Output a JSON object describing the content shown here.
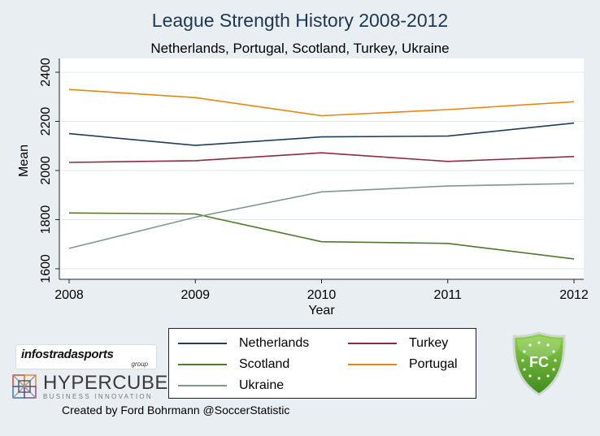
{
  "chart_data": {
    "type": "line",
    "title": "League Strength History 2008-2012",
    "subtitle": "Netherlands, Portugal, Scotland, Turkey, Ukraine",
    "xlabel": "Year",
    "ylabel": "Mean",
    "x": [
      2008,
      2009,
      2010,
      2011,
      2012
    ],
    "x_ticks": [
      "2008",
      "2009",
      "2010",
      "2011",
      "2012"
    ],
    "y_ticks": [
      "1600",
      "1800",
      "2000",
      "2200",
      "2400"
    ],
    "ylim": [
      1600,
      2400
    ],
    "grid": true,
    "legend_position": "bottom",
    "series": [
      {
        "name": "Netherlands",
        "color": "#1f3e5a",
        "values": [
          2150,
          2102,
          2137,
          2140,
          2193
        ]
      },
      {
        "name": "Turkey",
        "color": "#8c2c3c",
        "values": [
          2033,
          2040,
          2072,
          2037,
          2057
        ]
      },
      {
        "name": "Scotland",
        "color": "#4e7a2a",
        "values": [
          1827,
          1823,
          1710,
          1703,
          1640
        ]
      },
      {
        "name": "Portugal",
        "color": "#e8870c",
        "values": [
          2330,
          2297,
          2223,
          2248,
          2280
        ]
      },
      {
        "name": "Ukraine",
        "color": "#7f978f",
        "values": [
          1683,
          1810,
          1913,
          1937,
          1947
        ]
      }
    ]
  },
  "logos": {
    "infostrada_main": "infostradasports",
    "infostrada_sub": "group",
    "hypercube_name": "HYPERCUBE",
    "hypercube_tag": "BUSINESS INNOVATION",
    "badge_text": "FC"
  },
  "credit": "Created by Ford Bohrmann @SoccerStatistic"
}
